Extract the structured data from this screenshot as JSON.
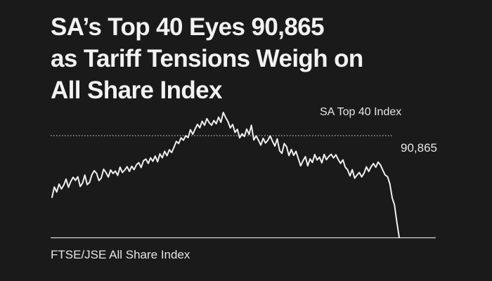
{
  "headline": {
    "line1": "SA’s Top 40 Eyes 90,865",
    "line2": "as Tariff Tensions Weigh on",
    "line3": "All Share Index"
  },
  "chart_data": {
    "type": "line",
    "series": [
      {
        "name": "SA Top 40 Index",
        "values": [
          86740,
          87430,
          87100,
          87630,
          87300,
          87560,
          87960,
          87410,
          87810,
          88080,
          87880,
          88120,
          87470,
          87690,
          88230,
          87590,
          87740,
          88250,
          88520,
          88350,
          87860,
          88040,
          88620,
          88400,
          88100,
          88570,
          88340,
          88500,
          88210,
          88760,
          88400,
          88570,
          88790,
          88480,
          88820,
          88590,
          88920,
          89060,
          88740,
          89190,
          89300,
          89010,
          89380,
          89150,
          89500,
          89120,
          89650,
          89380,
          89820,
          89520,
          89920,
          89740,
          90100,
          90480,
          90340,
          90720,
          90560,
          90860,
          90740,
          91260,
          90960,
          91310,
          91620,
          91390,
          91830,
          91560,
          92000,
          91740,
          91560,
          91880,
          91660,
          92100,
          91760,
          92420,
          92080,
          91810,
          91380,
          91610,
          91080,
          91290,
          90720,
          90990,
          90810,
          91300,
          90950,
          91560,
          90580,
          90850,
          90560,
          90230,
          90680,
          90370,
          90560,
          90850,
          90480,
          90170,
          90650,
          89860,
          89680,
          90340,
          90120,
          89530,
          89940,
          89550,
          89820,
          89320,
          88850,
          89190,
          89460,
          88850,
          89310,
          89070,
          89600,
          89240,
          89430,
          89050,
          89610,
          89260,
          89480,
          89620,
          89370,
          89590,
          89270,
          89010,
          89250,
          88760,
          88580,
          88180,
          88590,
          88020,
          88230,
          88400,
          88110,
          88350,
          88780,
          88470,
          88780,
          89000,
          88750,
          89100,
          88910,
          88560,
          88230,
          88130,
          87660,
          86710,
          86220,
          85060,
          84060
        ]
      }
    ],
    "reference_line": {
      "value": 90865,
      "label": "90,865"
    },
    "ylim": [
      84060,
      92420
    ],
    "xlabel": "FTSE/JSE All Share Index",
    "ylabel": "",
    "grid": false,
    "colors": {
      "background": "#1a1a1a",
      "line": "#f0f0f0",
      "reference": "#bdbdbd",
      "baseline": "#d8d8d8",
      "text": "#e6e6e6"
    }
  }
}
